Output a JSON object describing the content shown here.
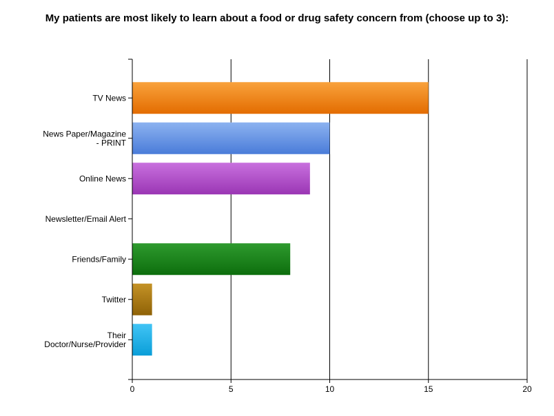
{
  "chart_data": {
    "type": "bar",
    "orientation": "horizontal",
    "title": "My patients are most likely to learn about a food or drug safety concern from (choose up to 3):",
    "xlabel": "",
    "ylabel": "",
    "xlim": [
      0,
      20
    ],
    "x_ticks": [
      0,
      5,
      10,
      15,
      20
    ],
    "grid": "vertical",
    "categories": [
      "TV News",
      "News Paper/Magazine - PRINT",
      "Online News",
      "Newsletter/Email Alert",
      "Friends/Family",
      "Twitter",
      "Their Doctor/Nurse/Provider"
    ],
    "category_label_lines": [
      [
        "TV News"
      ],
      [
        "News Paper/Magazine",
        "- PRINT"
      ],
      [
        "Online News"
      ],
      [
        "Newsletter/Email Alert"
      ],
      [
        "Friends/Family"
      ],
      [
        "Twitter"
      ],
      [
        "Their",
        "Doctor/Nurse/Provider"
      ]
    ],
    "values": [
      15,
      10,
      9,
      0,
      8,
      1,
      1
    ],
    "colors": [
      [
        "#f9a23c",
        "#e36c00"
      ],
      [
        "#8cb2f0",
        "#4a7cd9"
      ],
      [
        "#c870de",
        "#9a36b4"
      ],
      [
        "#888888",
        "#555555"
      ],
      [
        "#2e9a2e",
        "#0d6e0d"
      ],
      [
        "#c49226",
        "#8f6207"
      ],
      [
        "#41c4f5",
        "#0a9ed8"
      ]
    ]
  }
}
